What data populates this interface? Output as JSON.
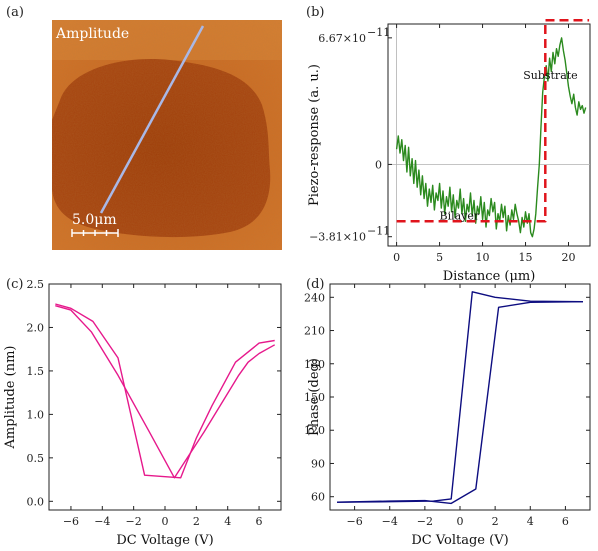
{
  "panels": {
    "a": {
      "label": "(a)",
      "image_label": "Amplitude",
      "scale_bar": "5.0μm",
      "colors": {
        "dark": "#9e3a06",
        "light": "#d9782a",
        "line": "#a9b8e6"
      }
    },
    "b": {
      "label": "(b)"
    },
    "c": {
      "label": "(c)"
    },
    "d": {
      "label": "(d)"
    }
  },
  "chart_data": [
    {
      "id": "b",
      "type": "line",
      "xlabel": "Distance (μm)",
      "ylabel": "Piezo-response (a. u.)",
      "xlim": [
        -1,
        22.5
      ],
      "ylim": [
        -4.3e-11,
        7.4e-11
      ],
      "xticks": [
        0,
        5,
        10,
        15,
        20
      ],
      "ytick_labels": [
        {
          "value": 6.67e-11,
          "base": "6.67×10",
          "exp": "−11"
        },
        {
          "value": 0,
          "base": "0",
          "exp": ""
        },
        {
          "value": -3.81e-11,
          "base": "−3.81×10",
          "exp": "−11"
        }
      ],
      "annotations": [
        {
          "text": "Substrate",
          "x": 17.9,
          "y": 4.5e-11
        },
        {
          "text": "Bilayer",
          "x": 7.3,
          "y": -2.9e-11
        }
      ],
      "zero_line": true,
      "series": [
        {
          "color": "#2b8a1e",
          "style": "solid",
          "x": [
            0.0,
            0.2,
            0.4,
            0.6,
            0.8,
            1.0,
            1.2,
            1.4,
            1.6,
            1.8,
            2.0,
            2.2,
            2.4,
            2.6,
            2.8,
            3.0,
            3.2,
            3.4,
            3.6,
            3.8,
            4.0,
            4.2,
            4.4,
            4.6,
            4.8,
            5.0,
            5.2,
            5.4,
            5.6,
            5.8,
            6.0,
            6.2,
            6.4,
            6.6,
            6.8,
            7.0,
            7.2,
            7.4,
            7.6,
            7.8,
            8.0,
            8.2,
            8.4,
            8.6,
            8.8,
            9.0,
            9.2,
            9.4,
            9.6,
            9.8,
            10.0,
            10.2,
            10.4,
            10.6,
            10.8,
            11.0,
            11.2,
            11.4,
            11.6,
            11.8,
            12.0,
            12.2,
            12.4,
            12.6,
            12.8,
            13.0,
            13.2,
            13.4,
            13.6,
            13.8,
            14.0,
            14.2,
            14.4,
            14.6,
            14.8,
            15.0,
            15.2,
            15.4,
            15.6,
            15.8,
            16.0,
            16.2,
            16.4,
            16.6,
            16.8,
            17.0,
            17.2,
            17.4,
            17.6,
            17.8,
            18.0,
            18.2,
            18.4,
            18.6,
            18.8,
            19.0,
            19.2,
            19.4,
            19.6,
            19.8,
            20.0,
            20.2,
            20.4,
            20.6,
            20.8,
            21.0,
            21.2,
            21.4,
            21.6,
            21.8,
            22.0
          ],
          "y": [
            8e-12,
            1.5e-11,
            6e-12,
            1.3e-11,
            2e-12,
            1e-11,
            -4e-12,
            9e-12,
            -6e-12,
            3e-12,
            -1e-11,
            2e-12,
            -1.2e-11,
            -3e-12,
            -1.6e-11,
            -6e-12,
            -1.8e-11,
            -1e-11,
            -2.2e-11,
            -1.3e-11,
            -2e-11,
            -1.1e-11,
            -2.4e-11,
            -1.5e-11,
            -1.9e-11,
            -1e-11,
            -2.3e-11,
            -1.4e-11,
            -2.6e-11,
            -1.7e-11,
            -2.2e-11,
            -1.2e-11,
            -2.5e-11,
            -1.6e-11,
            -2.8e-11,
            -1.9e-11,
            -2.3e-11,
            -1.3e-11,
            -2.6e-11,
            -1.8e-11,
            -3e-11,
            -2.1e-11,
            -2.5e-11,
            -1.5e-11,
            -2.7e-11,
            -1.9e-11,
            -3.1e-11,
            -2.2e-11,
            -2.6e-11,
            -1.7e-11,
            -2.9e-11,
            -2e-11,
            -3.3e-11,
            -2.4e-11,
            -2.7e-11,
            -1.8e-11,
            -2.5e-11,
            -2e-11,
            -3.4e-11,
            -2.6e-11,
            -3e-11,
            -2.1e-11,
            -2.8e-11,
            -2.2e-11,
            -3.5e-11,
            -2.7e-11,
            -3.2e-11,
            -2.4e-11,
            -2.9e-11,
            -2.1e-11,
            -2.6e-11,
            -3e-11,
            -3.6e-11,
            -2.8e-11,
            -3.3e-11,
            -2.5e-11,
            -3.1e-11,
            -2.6e-11,
            -3.6e-11,
            -3.81e-11,
            -3.4e-11,
            -2.6e-11,
            -1.2e-11,
            0.0,
            2e-11,
            3.8e-11,
            4.6e-11,
            5.2e-11,
            4.4e-11,
            5.6e-11,
            4.9e-11,
            5.9e-11,
            5.3e-11,
            6.1e-11,
            5.7e-11,
            6.3e-11,
            6.67e-11,
            6e-11,
            5.5e-11,
            4.8e-11,
            4.1e-11,
            3.6e-11,
            3.2e-11,
            3.7e-11,
            3e-11,
            2.6e-11,
            3.3e-11,
            2.9e-11,
            3.1e-11,
            2.7e-11,
            3e-11
          ]
        },
        {
          "color": "#e0141c",
          "style": "dashed",
          "x": [
            0.0,
            17.3,
            17.3,
            22.4
          ],
          "y": [
            -3e-11,
            -3e-11,
            7.6e-11,
            7.6e-11
          ]
        }
      ]
    },
    {
      "id": "c",
      "type": "line",
      "xlabel": "DC Voltage (V)",
      "ylabel": "Amplitude (nm)",
      "xlim": [
        -7.4,
        7.4
      ],
      "ylim": [
        -0.1,
        2.5
      ],
      "xticks": [
        -6,
        -4,
        -2,
        0,
        2,
        4,
        6
      ],
      "yticks": [
        0.0,
        0.5,
        1.0,
        1.5,
        2.0,
        2.5
      ],
      "series": [
        {
          "color": "#e6198c",
          "x": [
            -7.0,
            -6.0,
            -4.7,
            -3.0,
            -1.0,
            0.6,
            2.5,
            4.7,
            5.3,
            6.0,
            7.0
          ],
          "y": [
            2.25,
            2.2,
            1.95,
            1.45,
            0.8,
            0.27,
            0.8,
            1.45,
            1.6,
            1.7,
            1.8
          ]
        },
        {
          "color": "#e6198c",
          "x": [
            7.0,
            6.0,
            4.5,
            3.0,
            2.0,
            1.0,
            -1.3,
            -3.0,
            -4.6,
            -6.0,
            -7.0
          ],
          "y": [
            1.85,
            1.82,
            1.6,
            1.1,
            0.73,
            0.27,
            0.3,
            1.65,
            2.07,
            2.22,
            2.27
          ]
        }
      ]
    },
    {
      "id": "d",
      "type": "line",
      "xlabel": "DC Voltage (V)",
      "ylabel": "Phase (deg)",
      "xlim": [
        -7.4,
        7.4
      ],
      "ylim": [
        48,
        252
      ],
      "xticks": [
        -6,
        -4,
        -2,
        0,
        2,
        4,
        6
      ],
      "yticks": [
        60,
        90,
        120,
        150,
        180,
        210,
        240
      ],
      "series": [
        {
          "color": "#0d0d80",
          "x": [
            -7.0,
            -4.0,
            -1.5,
            -0.5,
            0.7,
            2.0,
            4.0,
            7.0
          ],
          "y": [
            55.0,
            55.5,
            56.0,
            58.0,
            245.0,
            240.0,
            236.5,
            236.0
          ],
          "closed": false
        },
        {
          "color": "#0d0d80",
          "x": [
            7.0,
            4.0,
            2.2,
            0.9,
            -0.5,
            -2.0,
            -4.0,
            -7.0
          ],
          "y": [
            236.0,
            235.5,
            231.0,
            67.0,
            54.0,
            56.5,
            56.0,
            55.0
          ]
        }
      ]
    }
  ]
}
